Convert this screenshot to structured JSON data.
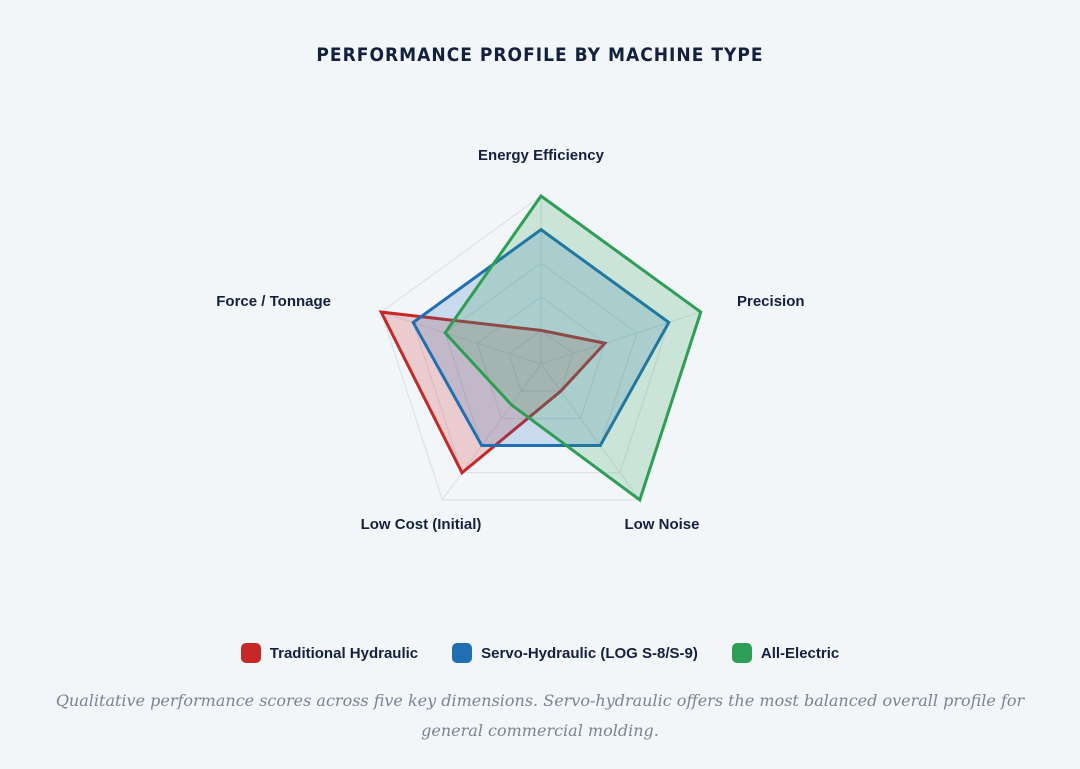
{
  "chart_data": {
    "type": "radar",
    "title": "PERFORMANCE PROFILE BY MACHINE TYPE",
    "axes": [
      "Energy Efficiency",
      "Precision",
      "Low Noise",
      "Low Cost (Initial)",
      "Force / Tonnage"
    ],
    "rmax": 10,
    "grid_levels": 5,
    "series": [
      {
        "name": "Traditional Hydraulic",
        "color": "#c62828",
        "values": [
          2,
          4,
          2,
          8,
          10
        ]
      },
      {
        "name": "Servo-Hydraulic (LOG S-8/S-9)",
        "color": "#1f6fb2",
        "values": [
          8,
          8,
          6,
          6,
          8
        ]
      },
      {
        "name": "All-Electric",
        "color": "#2e9e55",
        "values": [
          10,
          10,
          10,
          3,
          6
        ]
      }
    ]
  },
  "caption": "Qualitative performance scores across five key dimensions. Servo-hydraulic offers the most balanced overall profile for general commercial molding."
}
